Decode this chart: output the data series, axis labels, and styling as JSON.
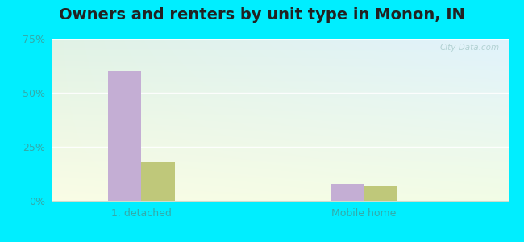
{
  "title": "Owners and renters by unit type in Monon, IN",
  "categories": [
    "1, detached",
    "Mobile home"
  ],
  "owner_values": [
    60.0,
    8.0
  ],
  "renter_values": [
    18.0,
    7.0
  ],
  "owner_color": "#c4aed4",
  "renter_color": "#bfc87a",
  "ylim": [
    0,
    75
  ],
  "yticks": [
    0,
    25,
    50,
    75
  ],
  "ytick_labels": [
    "0%",
    "25%",
    "50%",
    "75%"
  ],
  "outer_bg": "#00eeff",
  "bar_width": 0.3,
  "watermark": "City-Data.com",
  "title_fontsize": 14,
  "axis_fontsize": 9,
  "grid_color": "#e0e8d8",
  "plot_bg_top": "#d8eedc",
  "plot_bg_bottom": "#eef8ee",
  "plot_bg_right": "#e0f0f0",
  "x_positions": [
    1.0,
    3.0
  ],
  "xlim": [
    0.2,
    4.3
  ]
}
